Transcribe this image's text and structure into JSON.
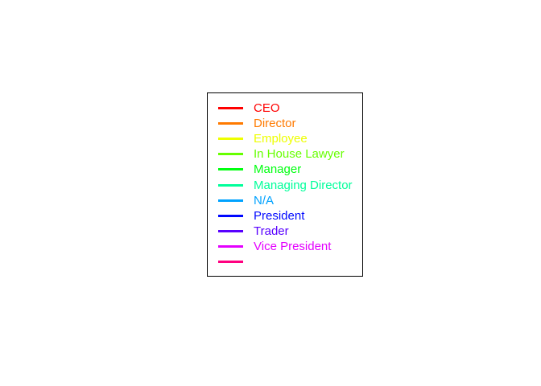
{
  "chart_data": {
    "type": "line",
    "legend": {
      "placement": "center",
      "entries": [
        {
          "label": "CEO",
          "color": "#FF0000"
        },
        {
          "label": "Director",
          "color": "#FF7A00"
        },
        {
          "label": "Employee",
          "color": "#EEFF00"
        },
        {
          "label": "In House Lawyer",
          "color": "#66FF00"
        },
        {
          "label": "Manager",
          "color": "#00FF10"
        },
        {
          "label": "Managing Director",
          "color": "#00FF9A"
        },
        {
          "label": "N/A",
          "color": "#00A2FF"
        },
        {
          "label": "President",
          "color": "#0008FF"
        },
        {
          "label": "Trader",
          "color": "#5800FF"
        },
        {
          "label": "Vice President",
          "color": "#E400FF"
        },
        {
          "label": "",
          "color": "#FF0080"
        }
      ]
    }
  }
}
